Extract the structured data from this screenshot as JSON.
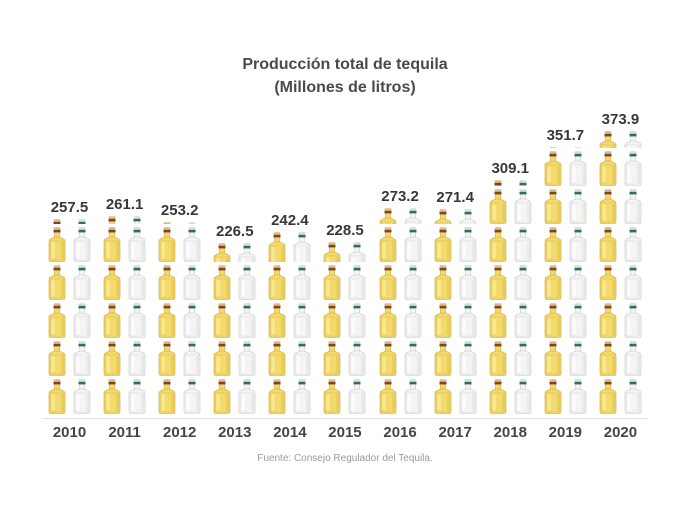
{
  "chart_data": {
    "type": "bar",
    "variant": "pictogram",
    "title": "Producción total de tequila",
    "subtitle": "(Millones de litros)",
    "source": "Fuente: Consejo Regulador del Tequila.",
    "categories": [
      "2010",
      "2011",
      "2012",
      "2013",
      "2014",
      "2015",
      "2016",
      "2017",
      "2018",
      "2019",
      "2020"
    ],
    "values": [
      257.5,
      261.1,
      253.2,
      226.5,
      242.4,
      228.5,
      273.2,
      271.4,
      309.1,
      351.7,
      373.9
    ],
    "unit_per_row": 50,
    "icons_per_row": "one yellow tequila bottle + one clear tequila bottle",
    "xlabel": "",
    "ylabel": "Millones de litros",
    "ylim": [
      0,
      400
    ],
    "grid": false,
    "legend": "none",
    "colors": {
      "title_text": "#4a4a4a",
      "value_text": "#383838",
      "year_text": "#454545",
      "source_text": "#9b9b9b",
      "baseline": "#e3e3e3",
      "yellow_bottle": {
        "body": "#f3da6b",
        "stroke": "#c9a63e",
        "highlight": "#fbefa8",
        "shade": "#e0be4e",
        "cap_top": "#d9ba8c",
        "cap_band": "#7e4327"
      },
      "white_bottle": {
        "body": "#f4f4f3",
        "stroke": "#c6c6c4",
        "highlight": "#ffffff",
        "shade": "#dededc",
        "cap_top": "#d3deda",
        "cap_band": "#35695e"
      }
    }
  }
}
